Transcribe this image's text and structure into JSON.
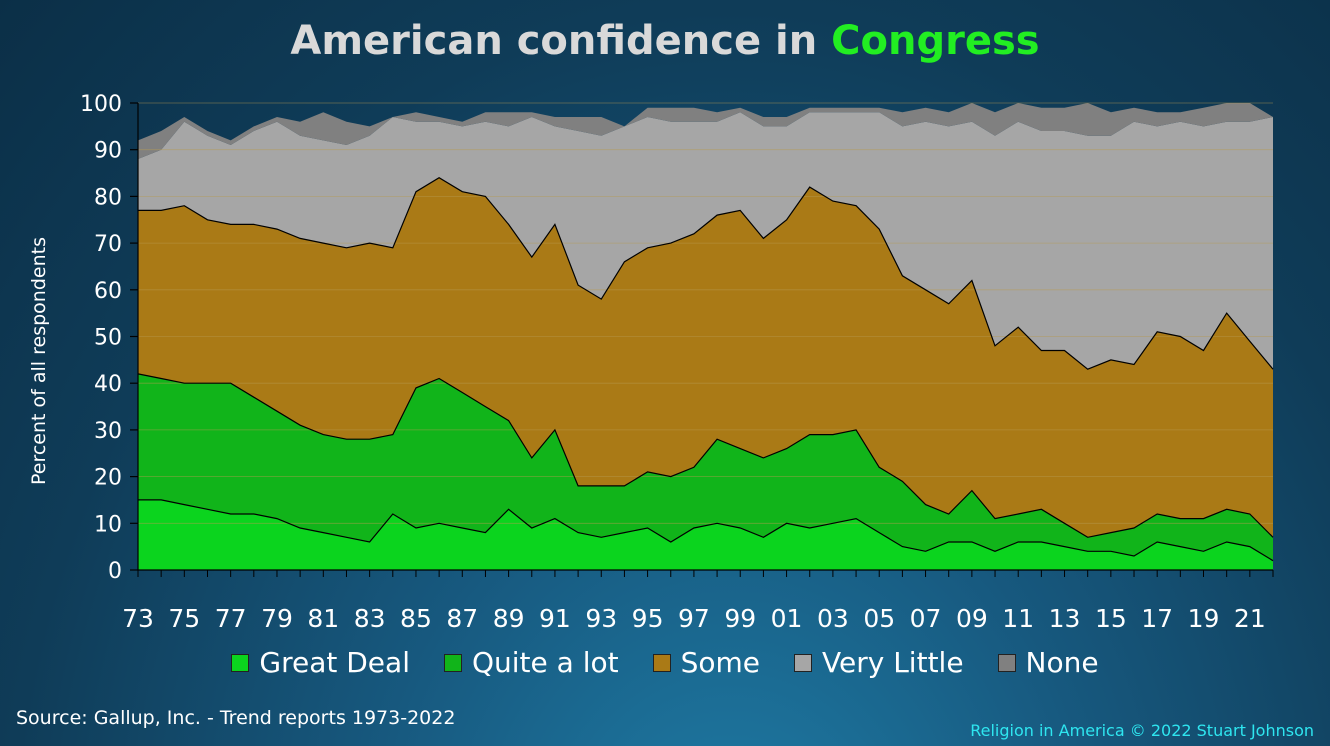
{
  "title": {
    "prefix": "American confidence in ",
    "highlight": "Congress"
  },
  "ylabel": "Percent of all respondents",
  "source": "Source: Gallup, Inc. - Trend reports 1973-2022",
  "credit": "Religion in America © 2022 Stuart Johnson",
  "colors": {
    "great_deal": "#0bd41e",
    "quite_a_lot": "#11b41a",
    "some": "#aa7a16",
    "very_little": "#a6a6a6",
    "none": "#808080",
    "grid": "#b69a52"
  },
  "chart_data": {
    "type": "area",
    "stacked": true,
    "x": [
      1973,
      1974,
      1975,
      1976,
      1977,
      1978,
      1979,
      1980,
      1981,
      1982,
      1983,
      1984,
      1985,
      1986,
      1987,
      1988,
      1989,
      1990,
      1991,
      1992,
      1993,
      1994,
      1995,
      1996,
      1997,
      1998,
      1999,
      2000,
      2001,
      2002,
      2003,
      2004,
      2005,
      2006,
      2007,
      2008,
      2009,
      2010,
      2011,
      2012,
      2013,
      2014,
      2015,
      2016,
      2017,
      2018,
      2019,
      2020,
      2021,
      2022
    ],
    "tick_labels": [
      "73",
      "75",
      "77",
      "79",
      "81",
      "83",
      "85",
      "87",
      "89",
      "91",
      "93",
      "95",
      "97",
      "99",
      "01",
      "03",
      "05",
      "07",
      "09",
      "11",
      "13",
      "15",
      "17",
      "19",
      "21"
    ],
    "ylim": [
      0,
      100
    ],
    "yticks": [
      0,
      10,
      20,
      30,
      40,
      50,
      60,
      70,
      80,
      90,
      100
    ],
    "series": [
      {
        "name": "Great Deal",
        "values": [
          15,
          15,
          14,
          13,
          12,
          12,
          11,
          9,
          8,
          7,
          6,
          12,
          9,
          10,
          9,
          8,
          13,
          9,
          11,
          8,
          7,
          8,
          9,
          6,
          9,
          10,
          9,
          7,
          10,
          9,
          10,
          11,
          8,
          5,
          4,
          6,
          6,
          4,
          6,
          6,
          5,
          4,
          4,
          3,
          6,
          5,
          4,
          6,
          5,
          2
        ]
      },
      {
        "name": "Quite a lot",
        "values": [
          27,
          26,
          26,
          27,
          28,
          25,
          23,
          22,
          21,
          21,
          22,
          17,
          30,
          31,
          29,
          27,
          19,
          15,
          19,
          10,
          11,
          10,
          12,
          14,
          13,
          18,
          17,
          17,
          16,
          20,
          19,
          19,
          14,
          14,
          10,
          6,
          11,
          7,
          6,
          7,
          5,
          3,
          4,
          6,
          6,
          6,
          7,
          7,
          7,
          5
        ]
      },
      {
        "name": "Some",
        "values": [
          35,
          36,
          38,
          35,
          34,
          37,
          39,
          40,
          41,
          41,
          42,
          40,
          42,
          43,
          43,
          45,
          42,
          43,
          44,
          43,
          40,
          48,
          48,
          50,
          50,
          48,
          51,
          47,
          49,
          53,
          50,
          48,
          51,
          44,
          46,
          45,
          45,
          37,
          40,
          34,
          37,
          36,
          37,
          35,
          39,
          39,
          36,
          42,
          37,
          36
        ]
      },
      {
        "name": "Very Little",
        "values": [
          11,
          13,
          18,
          18,
          17,
          20,
          23,
          22,
          22,
          22,
          23,
          28,
          15,
          12,
          14,
          16,
          21,
          30,
          21,
          33,
          35,
          29,
          28,
          26,
          24,
          20,
          21,
          24,
          20,
          16,
          19,
          20,
          25,
          32,
          36,
          38,
          34,
          45,
          44,
          47,
          47,
          50,
          48,
          52,
          44,
          46,
          48,
          41,
          47,
          54
        ]
      },
      {
        "name": "None",
        "values": [
          4,
          4,
          1,
          1,
          1,
          1,
          1,
          3,
          6,
          5,
          2,
          0,
          2,
          1,
          1,
          2,
          3,
          1,
          2,
          3,
          4,
          0,
          2,
          3,
          3,
          2,
          1,
          2,
          2,
          1,
          1,
          1,
          1,
          3,
          3,
          3,
          4,
          5,
          4,
          5,
          5,
          7,
          5,
          3,
          3,
          2,
          4,
          4,
          4,
          0
        ]
      }
    ]
  }
}
